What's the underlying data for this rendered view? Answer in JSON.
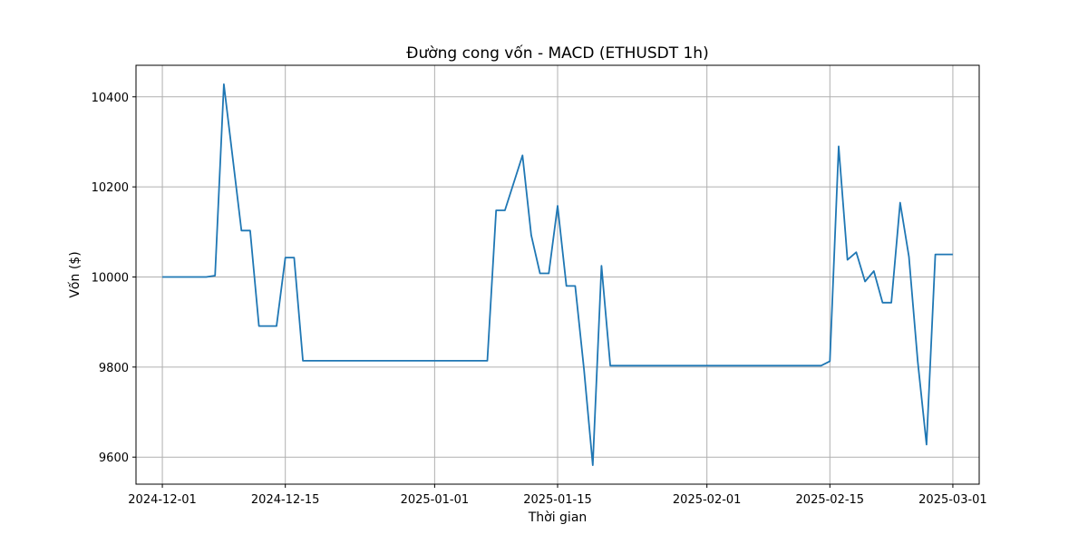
{
  "chart_data": {
    "type": "line",
    "title": "Đường cong vốn - MACD (ETHUSDT 1h)",
    "xlabel": "Thời gian",
    "ylabel": "Vốn ($)",
    "grid": true,
    "xlim": [
      "2024-11-28",
      "2025-03-04"
    ],
    "ylim": [
      9540,
      10470
    ],
    "x_ticks": [
      "2024-12-01",
      "2024-12-15",
      "2025-01-01",
      "2025-01-15",
      "2025-02-01",
      "2025-02-15",
      "2025-03-01"
    ],
    "y_ticks": [
      9600,
      9800,
      10000,
      10200,
      10400
    ],
    "line_color": "#1f77b4",
    "series": [
      {
        "x": [
          "2024-12-01",
          "2024-12-06",
          "2024-12-07",
          "2024-12-08",
          "2024-12-10",
          "2024-12-11",
          "2024-12-12",
          "2024-12-14",
          "2024-12-15",
          "2024-12-16",
          "2024-12-17",
          "2025-01-07",
          "2025-01-08",
          "2025-01-09",
          "2025-01-11",
          "2025-01-12",
          "2025-01-13",
          "2025-01-14",
          "2025-01-15",
          "2025-01-16",
          "2025-01-17",
          "2025-01-18",
          "2025-01-19",
          "2025-01-20",
          "2025-01-21",
          "2025-02-14",
          "2025-02-15",
          "2025-02-16",
          "2025-02-17",
          "2025-02-18",
          "2025-02-19",
          "2025-02-20",
          "2025-02-21",
          "2025-02-22",
          "2025-02-23",
          "2025-02-24",
          "2025-02-25",
          "2025-02-26",
          "2025-02-27",
          "2025-02-28",
          "2025-03-01"
        ],
        "values": [
          10000,
          10000,
          10003,
          10428,
          10103,
          10103,
          9891,
          9891,
          10043,
          10043,
          9814,
          9814,
          10148,
          10148,
          10270,
          10093,
          10008,
          10008,
          10158,
          9980,
          9980,
          9795,
          9582,
          10025,
          9803,
          9803,
          9813,
          10290,
          10038,
          10055,
          9990,
          10013,
          9943,
          9943,
          10165,
          10045,
          9813,
          9628,
          10050,
          10050,
          10050
        ]
      }
    ]
  }
}
